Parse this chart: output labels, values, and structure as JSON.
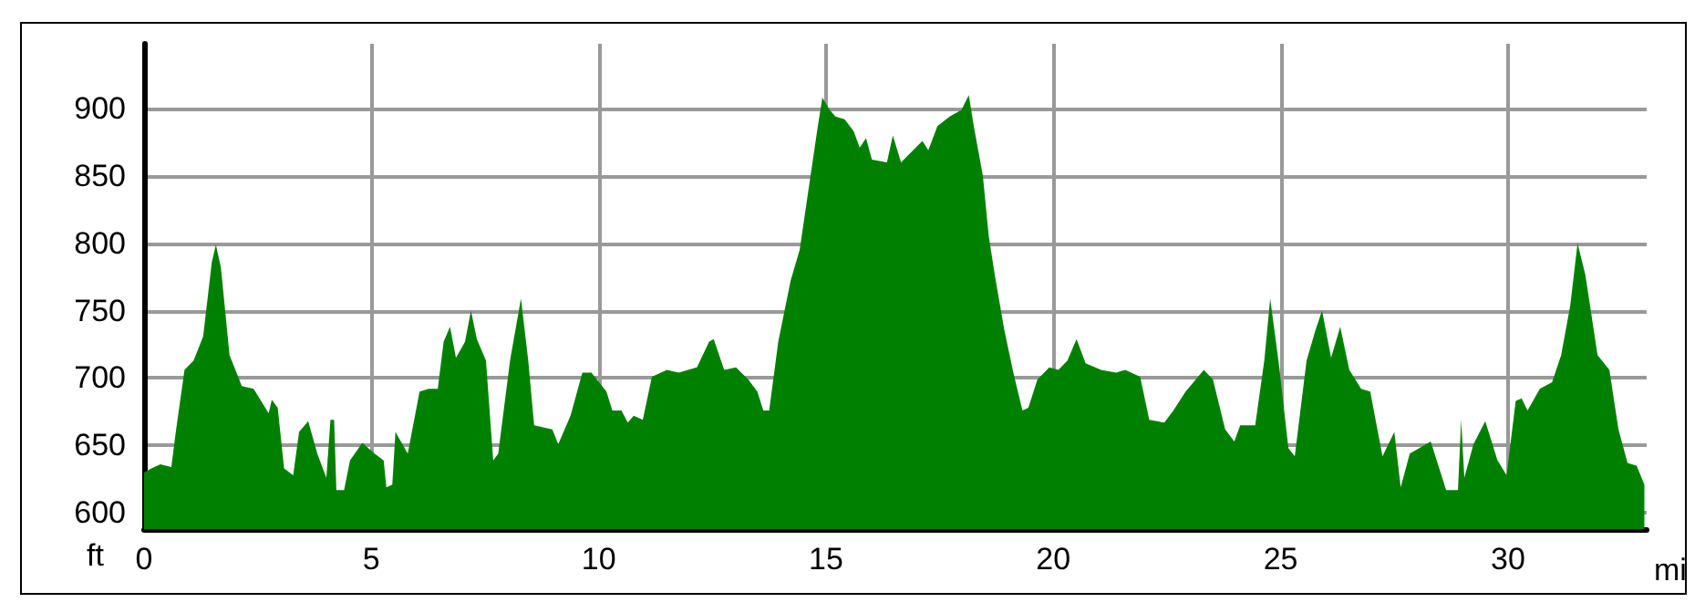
{
  "chart_data": {
    "type": "area",
    "xlabel": "mi",
    "ylabel": "ft",
    "xlim": [
      0,
      33.05
    ],
    "ylim": [
      588,
      948
    ],
    "xticks": [
      0,
      5,
      10,
      15,
      20,
      25,
      30
    ],
    "yticks": [
      600,
      650,
      700,
      750,
      800,
      850,
      900
    ],
    "grid": true,
    "series": [
      {
        "color": "#008000",
        "x": [
          0,
          0.16,
          0.36,
          0.6,
          0.69,
          0.89,
          1.09,
          1.3,
          1.49,
          1.58,
          1.69,
          1.88,
          2.15,
          2.41,
          2.74,
          2.81,
          2.94,
          3.08,
          3.28,
          3.41,
          3.61,
          3.81,
          4.01,
          4.1,
          4.18,
          4.23,
          4.4,
          4.53,
          4.8,
          5.07,
          5.27,
          5.33,
          5.46,
          5.53,
          5.8,
          6.06,
          6.26,
          6.46,
          6.59,
          6.73,
          6.86,
          7.06,
          7.19,
          7.32,
          7.52,
          7.68,
          7.79,
          8.05,
          8.29,
          8.45,
          8.58,
          8.98,
          9.11,
          9.38,
          9.64,
          9.84,
          10.17,
          10.3,
          10.5,
          10.64,
          10.77,
          10.97,
          11.17,
          11.5,
          11.76,
          12.16,
          12.43,
          12.53,
          12.76,
          13.02,
          13.29,
          13.49,
          13.62,
          13.75,
          13.95,
          14.22,
          14.42,
          14.62,
          14.82,
          14.92,
          15.08,
          15.21,
          15.41,
          15.61,
          15.74,
          15.88,
          16.01,
          16.34,
          16.47,
          16.65,
          17.12,
          17.25,
          17.45,
          17.72,
          17.98,
          18.14,
          18.25,
          18.45,
          18.58,
          18.72,
          18.92,
          19.12,
          19.32,
          19.45,
          19.65,
          19.91,
          20.11,
          20.31,
          20.51,
          20.71,
          21.05,
          21.38,
          21.58,
          21.91,
          22.11,
          22.44,
          22.64,
          22.91,
          23.31,
          23.51,
          23.78,
          23.98,
          24.11,
          24.44,
          24.64,
          24.77,
          24.97,
          25.17,
          25.31,
          25.57,
          25.77,
          25.91,
          26.11,
          26.31,
          26.51,
          26.77,
          26.97,
          27.24,
          27.5,
          27.64,
          27.84,
          28.3,
          28.64,
          28.9,
          28.97,
          29.04,
          29.24,
          29.5,
          29.77,
          29.97,
          30.17,
          30.3,
          30.43,
          30.7,
          30.97,
          31.17,
          31.37,
          31.53,
          31.7,
          31.97,
          32.23,
          32.43,
          32.63,
          32.83,
          33.0
        ],
        "values": [
          630,
          633,
          636,
          634,
          658,
          706,
          713,
          731,
          786,
          799,
          782,
          717,
          694,
          692,
          674,
          684,
          678,
          633,
          628,
          660,
          668,
          644,
          626,
          669,
          669,
          617,
          617,
          639,
          652,
          644,
          639,
          619,
          621,
          660,
          644,
          690,
          692,
          692,
          727,
          738,
          715,
          727,
          750,
          729,
          713,
          639,
          644,
          713,
          759,
          713,
          665,
          662,
          651,
          672,
          704,
          704,
          690,
          676,
          676,
          667,
          672,
          669,
          701,
          706,
          704,
          708,
          727,
          729,
          706,
          708,
          699,
          690,
          676,
          676,
          727,
          772,
          795,
          841,
          887,
          908,
          899,
          894,
          892,
          883,
          871,
          878,
          862,
          860,
          880,
          860,
          876,
          869,
          887,
          894,
          899,
          910,
          887,
          850,
          805,
          775,
          736,
          704,
          676,
          678,
          699,
          708,
          706,
          713,
          729,
          711,
          706,
          704,
          706,
          701,
          669,
          667,
          676,
          690,
          706,
          699,
          662,
          653,
          665,
          665,
          713,
          759,
          708,
          648,
          642,
          713,
          736,
          750,
          715,
          738,
          706,
          692,
          690,
          642,
          660,
          619,
          644,
          653,
          617,
          617,
          669,
          626,
          651,
          668,
          639,
          628,
          683,
          685,
          676,
          692,
          697,
          717,
          754,
          800,
          777,
          717,
          706,
          662,
          637,
          635,
          621
        ]
      }
    ]
  }
}
